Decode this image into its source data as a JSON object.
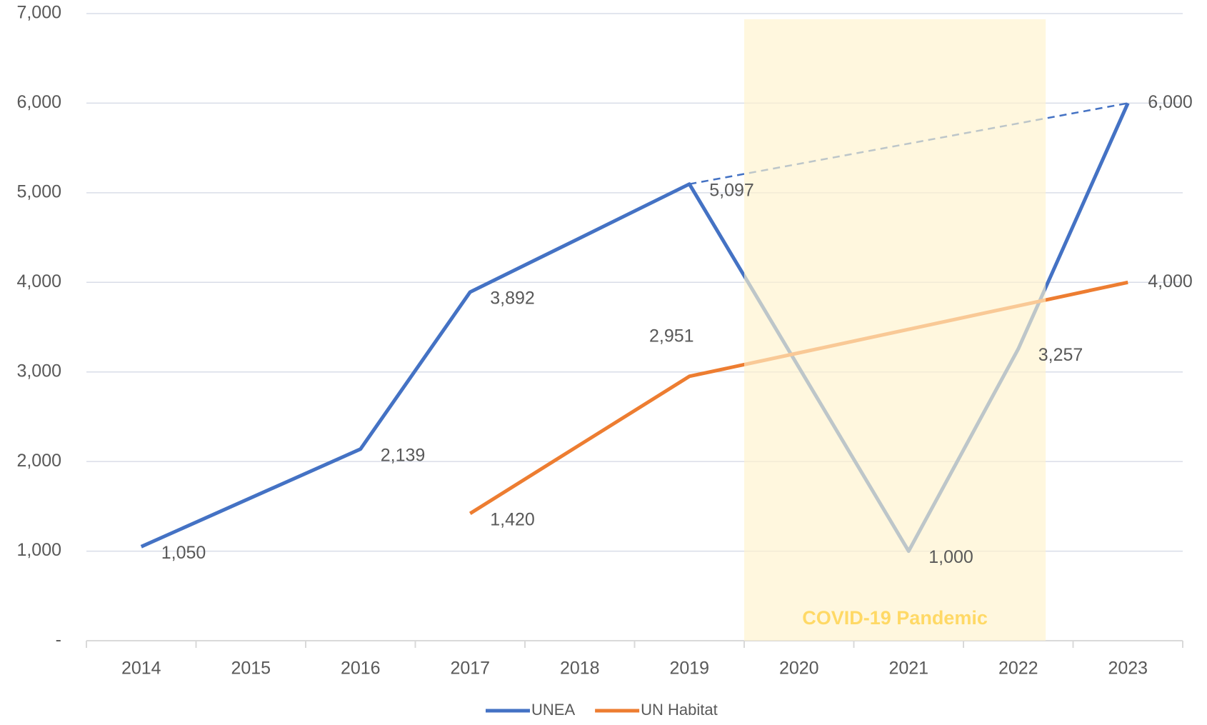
{
  "chart_data": {
    "type": "line",
    "categories": [
      "2014",
      "2015",
      "2016",
      "2017",
      "2018",
      "2019",
      "2020",
      "2021",
      "2022",
      "2023"
    ],
    "series": [
      {
        "name": "UNEA",
        "color": "#4472c4",
        "values": [
          1050,
          1595,
          2139,
          3892,
          4494,
          5097,
          3049,
          1000,
          3257,
          6000
        ],
        "value_labels": [
          "1,050",
          null,
          "2,139",
          "3,892",
          null,
          "5,097",
          null,
          "1,000",
          "3,257",
          "6,000"
        ]
      },
      {
        "name": "UN Habitat",
        "color": "#ed7d31",
        "values": [
          null,
          null,
          null,
          1420,
          2186,
          2951,
          3213,
          3476,
          3738,
          4000
        ],
        "value_labels": [
          null,
          null,
          null,
          "1,420",
          null,
          "2,951",
          null,
          null,
          null,
          "4,000"
        ]
      }
    ],
    "ylim": [
      0,
      7000
    ],
    "yticks": [
      {
        "value": 0,
        "label": "-"
      },
      {
        "value": 1000,
        "label": "1,000"
      },
      {
        "value": 2000,
        "label": "2,000"
      },
      {
        "value": 3000,
        "label": "3,000"
      },
      {
        "value": 4000,
        "label": "4,000"
      },
      {
        "value": 5000,
        "label": "5,000"
      },
      {
        "value": 6000,
        "label": "6,000"
      },
      {
        "value": 7000,
        "label": "7,000"
      }
    ],
    "grid": true,
    "highlight": {
      "label": "COVID-19 Pandemic",
      "from": "2020",
      "to": "2022",
      "color": "#fff2cc"
    },
    "legend": "bottom"
  }
}
